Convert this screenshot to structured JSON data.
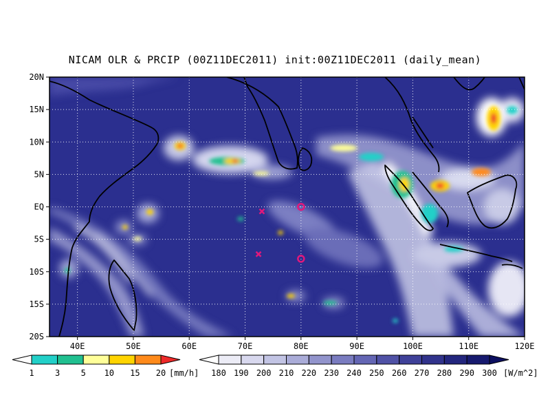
{
  "title": "NICAM OLR & PRCIP (00Z11DEC2011) init:00Z11DEC2011 (daily_mean)",
  "lat_labels": [
    "20N",
    "15N",
    "10N",
    "5N",
    "EQ",
    "5S",
    "10S",
    "15S",
    "20S"
  ],
  "lon_labels": [
    "40E",
    "50E",
    "60E",
    "70E",
    "80E",
    "90E",
    "100E",
    "110E",
    "120E"
  ],
  "precip_colorbar": {
    "unit": "[mm/h]",
    "ticks": [
      "1",
      "3",
      "5",
      "10",
      "15",
      "20"
    ],
    "colors": [
      "#ffffff",
      "#22d0c8",
      "#20c090",
      "#ffff99",
      "#ffd400",
      "#ff8a1a",
      "#ee2a2a"
    ]
  },
  "olr_colorbar": {
    "unit": "[W/m^2]",
    "ticks": [
      "180",
      "190",
      "200",
      "210",
      "220",
      "230",
      "240",
      "250",
      "260",
      "270",
      "280",
      "290",
      "300"
    ],
    "colors": [
      "#ffffff",
      "#ececf6",
      "#d8d8ee",
      "#c2c4e4",
      "#aaacd8",
      "#9294cc",
      "#7a7cc0",
      "#6466b4",
      "#5052a6",
      "#3f4199",
      "#31338c",
      "#23267e",
      "#171a6f",
      "#0c0f60"
    ]
  },
  "markers": [
    {
      "type": "x",
      "lon": 73,
      "lat": -0.7
    },
    {
      "type": "x",
      "lon": 72.4,
      "lat": -7.3
    },
    {
      "type": "circle",
      "lon": 80,
      "lat": 0
    },
    {
      "type": "circle",
      "lon": 80,
      "lat": -8
    }
  ],
  "map": {
    "lon_range": [
      35,
      120
    ],
    "lat_range": [
      -20,
      20
    ],
    "ocean_color": "#2b2f8f",
    "marker_color": "#e0187c"
  }
}
